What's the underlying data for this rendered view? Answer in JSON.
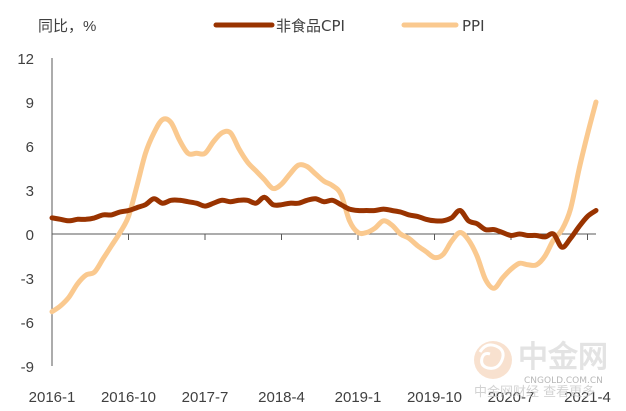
{
  "chart_data": {
    "type": "line",
    "unit_label": "同比，%",
    "ylim": [
      -9,
      12
    ],
    "yticks": [
      -9,
      -6,
      -3,
      0,
      3,
      6,
      9,
      12
    ],
    "x_ticks": [
      "2016-1",
      "2016-10",
      "2017-7",
      "2018-4",
      "2019-1",
      "2019-10",
      "2020-7",
      "2021-4"
    ],
    "x": [
      "2016-01",
      "2016-02",
      "2016-03",
      "2016-04",
      "2016-05",
      "2016-06",
      "2016-07",
      "2016-08",
      "2016-09",
      "2016-10",
      "2016-11",
      "2016-12",
      "2017-01",
      "2017-02",
      "2017-03",
      "2017-04",
      "2017-05",
      "2017-06",
      "2017-07",
      "2017-08",
      "2017-09",
      "2017-10",
      "2017-11",
      "2017-12",
      "2018-01",
      "2018-02",
      "2018-03",
      "2018-04",
      "2018-05",
      "2018-06",
      "2018-07",
      "2018-08",
      "2018-09",
      "2018-10",
      "2018-11",
      "2018-12",
      "2019-01",
      "2019-02",
      "2019-03",
      "2019-04",
      "2019-05",
      "2019-06",
      "2019-07",
      "2019-08",
      "2019-09",
      "2019-10",
      "2019-11",
      "2019-12",
      "2020-01",
      "2020-02",
      "2020-03",
      "2020-04",
      "2020-05",
      "2020-06",
      "2020-07",
      "2020-08",
      "2020-09",
      "2020-10",
      "2020-11",
      "2020-12",
      "2021-01",
      "2021-02",
      "2021-03",
      "2021-04",
      "2021-05"
    ],
    "series": [
      {
        "name": "非食品CPI",
        "color": "#993300",
        "values": [
          1.1,
          1.0,
          0.9,
          1.0,
          1.0,
          1.1,
          1.3,
          1.3,
          1.5,
          1.6,
          1.8,
          2.0,
          2.4,
          2.1,
          2.3,
          2.3,
          2.2,
          2.1,
          1.9,
          2.1,
          2.3,
          2.2,
          2.3,
          2.3,
          2.1,
          2.5,
          2.0,
          2.0,
          2.1,
          2.1,
          2.3,
          2.4,
          2.2,
          2.3,
          2.0,
          1.7,
          1.6,
          1.6,
          1.6,
          1.7,
          1.6,
          1.5,
          1.3,
          1.2,
          1.0,
          0.9,
          0.9,
          1.1,
          1.6,
          0.9,
          0.7,
          0.3,
          0.3,
          0.1,
          -0.1,
          0.0,
          -0.1,
          -0.1,
          -0.2,
          0.0,
          -0.9,
          -0.3,
          0.5,
          1.2,
          1.6
        ]
      },
      {
        "name": "PPI",
        "color": "#FAC98F",
        "values": [
          -5.3,
          -4.9,
          -4.3,
          -3.4,
          -2.8,
          -2.6,
          -1.7,
          -0.8,
          0.1,
          1.2,
          3.3,
          5.5,
          6.9,
          7.8,
          7.6,
          6.4,
          5.5,
          5.5,
          5.5,
          6.3,
          6.9,
          6.9,
          5.8,
          4.9,
          4.3,
          3.7,
          3.1,
          3.4,
          4.1,
          4.7,
          4.6,
          4.1,
          3.6,
          3.3,
          2.7,
          0.9,
          0.1,
          0.1,
          0.4,
          0.9,
          0.6,
          0.0,
          -0.3,
          -0.8,
          -1.2,
          -1.6,
          -1.4,
          -0.5,
          0.1,
          -0.4,
          -1.5,
          -3.1,
          -3.7,
          -3.0,
          -2.4,
          -2.0,
          -2.1,
          -2.1,
          -1.5,
          -0.4,
          0.3,
          1.7,
          4.4,
          6.8,
          9.0
        ]
      }
    ]
  },
  "watermark": {
    "brand_text": "中金网",
    "domain_text": "CNGOLD.COM.CN",
    "faint_text": "中金网财经 查看更多"
  }
}
